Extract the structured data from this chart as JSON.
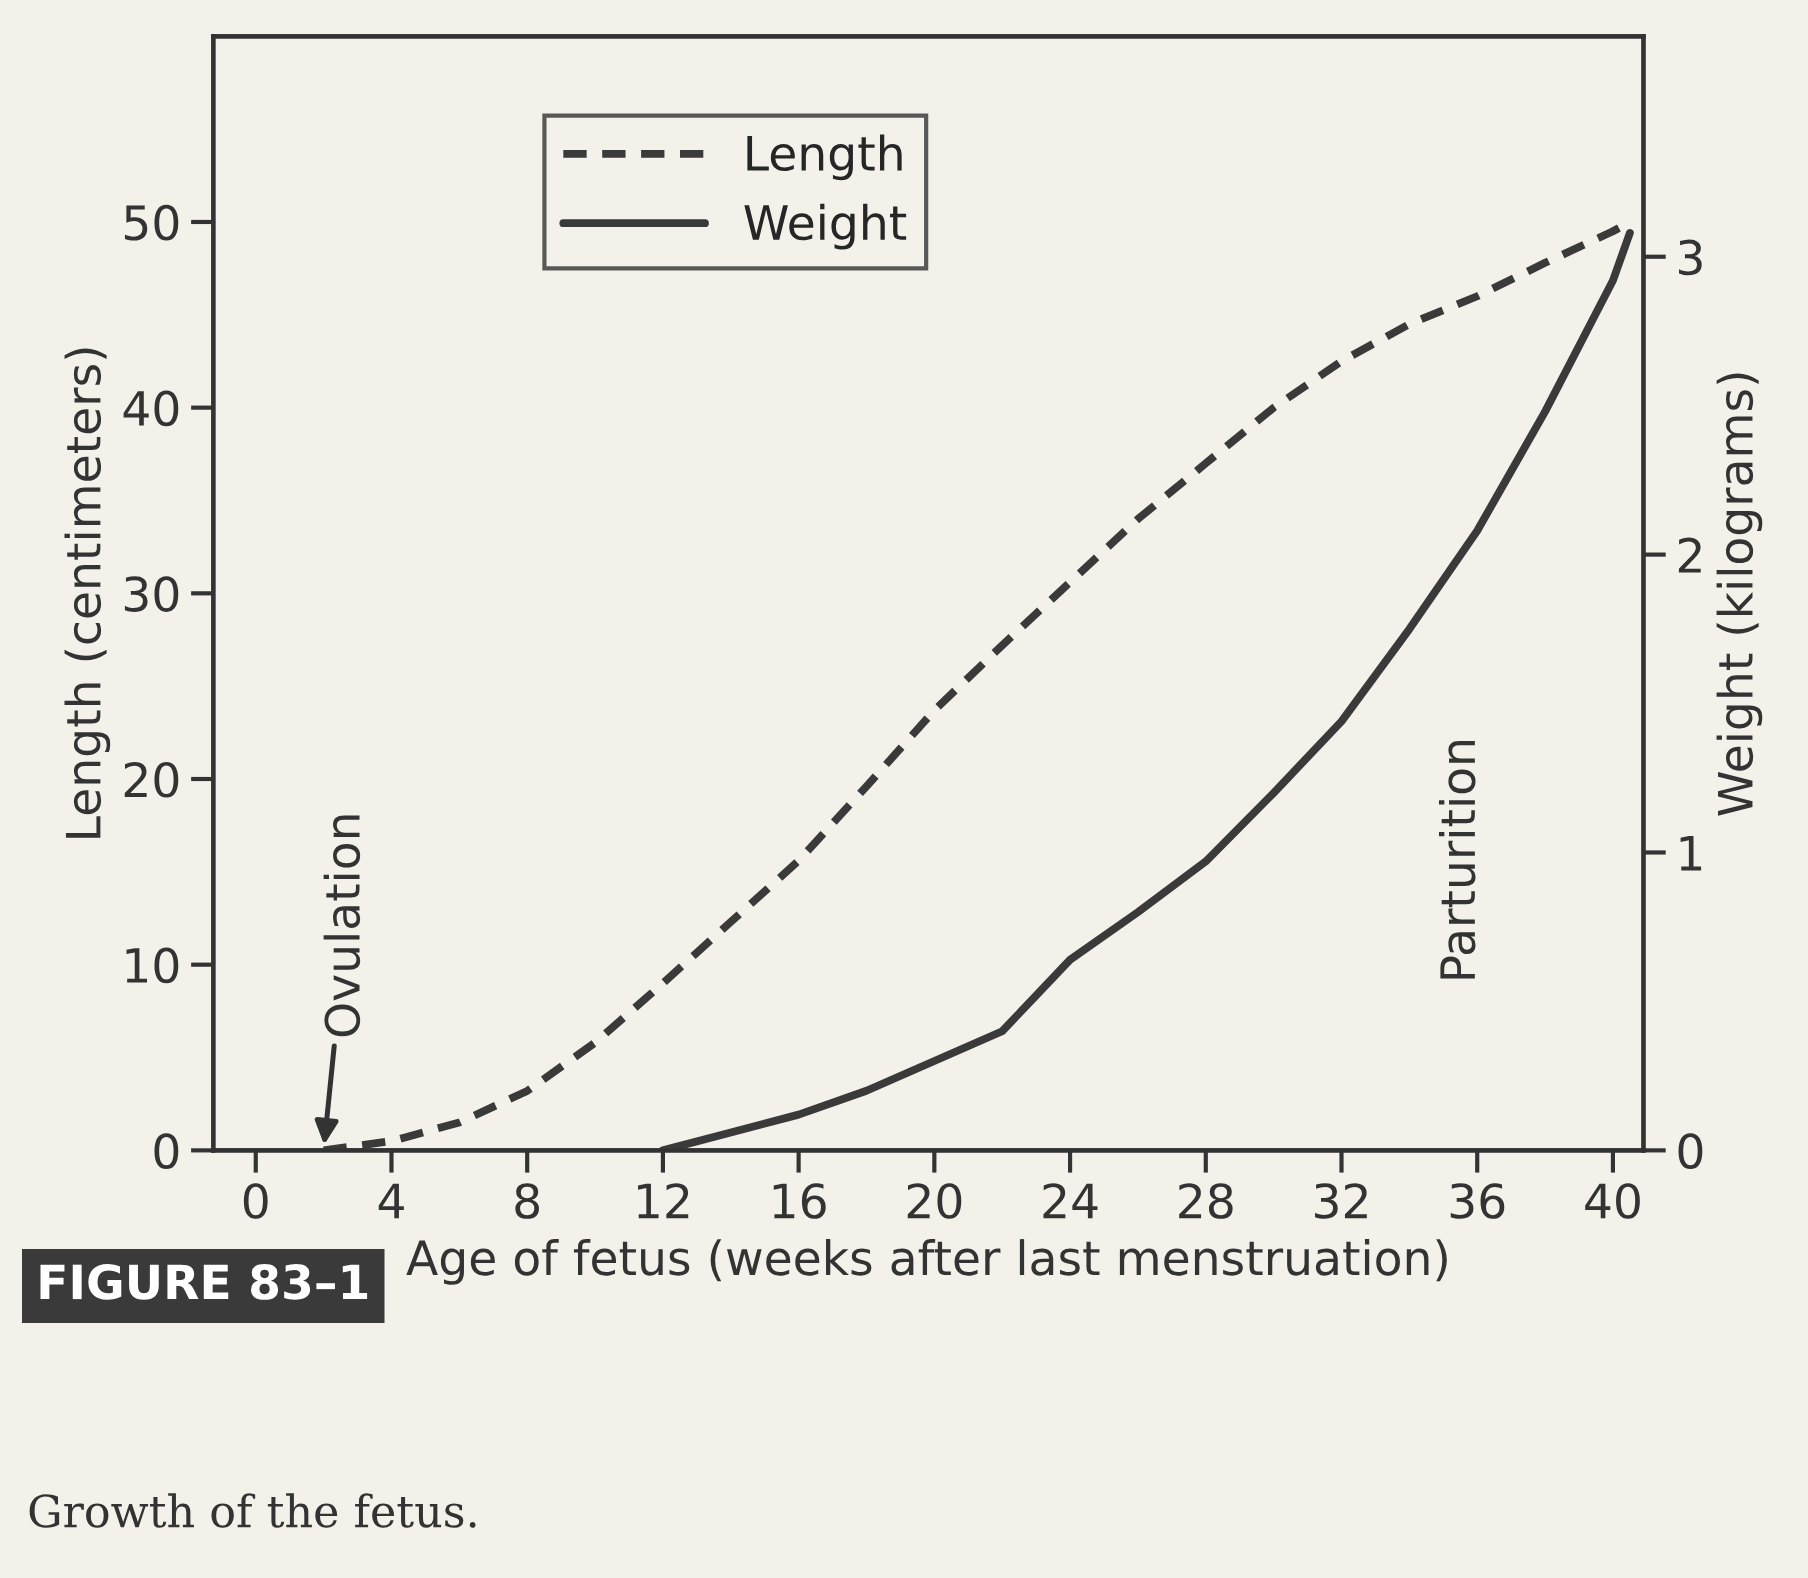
{
  "chart_data": {
    "type": "line",
    "xlabel": "Age of fetus (weeks after last menstruation)",
    "ylabel": "Length (centimeters)",
    "y2label": "Weight (kilograms)",
    "x": [
      2,
      4,
      6,
      8,
      10,
      12,
      14,
      16,
      18,
      20,
      22,
      24,
      26,
      28,
      30,
      32,
      34,
      36,
      38,
      40,
      40.5
    ],
    "series": [
      {
        "name": "Length",
        "color": "#3a3a3a",
        "line_style": "dashed",
        "values": [
          0,
          0.5,
          1.5,
          3.2,
          5.8,
          9,
          12.3,
          15.6,
          19.6,
          23.7,
          27.2,
          30.6,
          34,
          37,
          40,
          42.5,
          44.5,
          46,
          47.8,
          49.5,
          50
        ]
      },
      {
        "name": "Weight",
        "color": "#3a3a3a",
        "line_style": "solid",
        "axis": "y2",
        "x": [
          12,
          14,
          16,
          18,
          20,
          22,
          24,
          26,
          28,
          30,
          32,
          34,
          36,
          38,
          40,
          40.5
        ],
        "values": [
          0,
          0.06,
          0.12,
          0.2,
          0.3,
          0.4,
          0.64,
          0.8,
          0.97,
          1.2,
          1.44,
          1.75,
          2.08,
          2.48,
          2.92,
          3.08
        ]
      }
    ],
    "xlim": [
      -1.25,
      40.9
    ],
    "xticks": [
      0,
      4,
      8,
      12,
      16,
      20,
      24,
      28,
      32,
      36,
      40
    ],
    "ylim": [
      0,
      60
    ],
    "yticks": [
      0,
      10,
      20,
      30,
      40,
      50
    ],
    "y2lim": [
      0,
      3.74
    ],
    "y2ticks": [
      0,
      1,
      2,
      3
    ],
    "grid": false,
    "legend": "top left",
    "marker": "none",
    "annotations": [
      {
        "text": "Ovulation",
        "x": 2,
        "y": 0
      },
      "Parturition",
      "FIGURE 83–1",
      "Growth of the fetus."
    ]
  }
}
